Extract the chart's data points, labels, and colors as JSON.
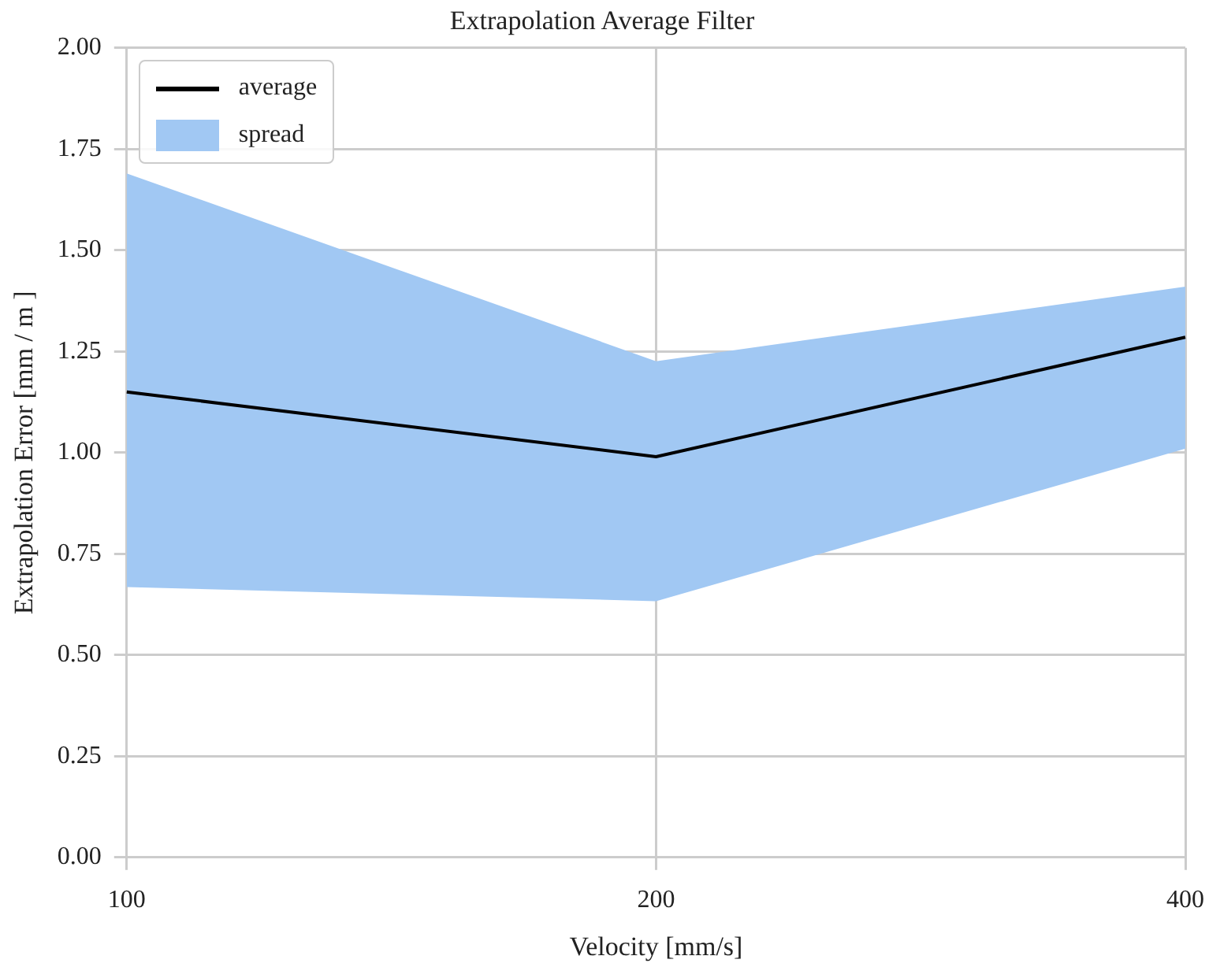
{
  "chart_data": {
    "type": "line",
    "title": "Extrapolation Average Filter",
    "xlabel": "Velocity [mm/s]",
    "ylabel": "Extrapolation Error [mm / m ]",
    "categories": [
      "100",
      "200",
      "400"
    ],
    "series": [
      {
        "name": "average",
        "type": "line",
        "color": "#000000",
        "values": [
          1.15,
          0.99,
          1.285
        ],
        "lower": [
          0.668,
          0.633,
          1.01
        ],
        "upper": [
          1.69,
          1.226,
          1.41
        ]
      }
    ],
    "ylim": [
      0,
      2
    ],
    "yticks": [
      {
        "value": 0,
        "label": "0.00"
      },
      {
        "value": 0.25,
        "label": "0.25"
      },
      {
        "value": 0.5,
        "label": "0.50"
      },
      {
        "value": 0.75,
        "label": "0.75"
      },
      {
        "value": 1,
        "label": "1.00"
      },
      {
        "value": 1.25,
        "label": "1.25"
      },
      {
        "value": 1.5,
        "label": "1.50"
      },
      {
        "value": 1.75,
        "label": "1.75"
      },
      {
        "value": 2,
        "label": "2.00"
      }
    ],
    "annotations": [
      "spread"
    ],
    "grid": true,
    "legend": "top left",
    "marker": "none",
    "line_style": "solid"
  }
}
